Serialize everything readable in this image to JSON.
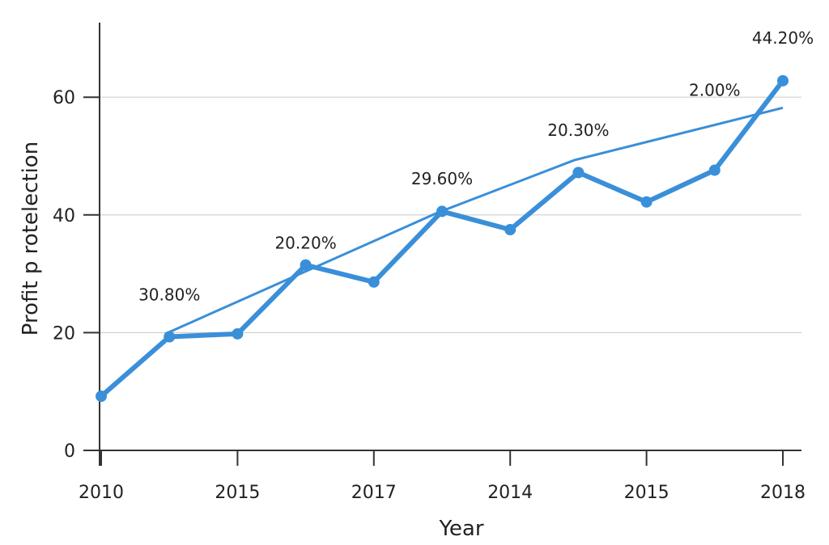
{
  "chart_data": {
    "type": "line",
    "xlabel": "Year",
    "ylabel": "Profit p rotelection",
    "ylim": [
      0,
      70
    ],
    "yticks": [
      0,
      20,
      40,
      60
    ],
    "xtick_labels": [
      "2010",
      "2015",
      "2017",
      "2014",
      "2015",
      "2018"
    ],
    "grid": true,
    "series": [
      {
        "x": [
          0,
          0.5,
          1,
          1.5,
          2,
          2.5,
          3,
          3.5,
          4,
          4.5,
          5
        ],
        "values": [
          9.2,
          19.3,
          19.8,
          31.5,
          28.6,
          40.6,
          37.5,
          47.2,
          42.2,
          47.6,
          62.8
        ],
        "color": "#3a8fd9"
      }
    ],
    "trend_line": {
      "x": [
        0.47,
        2.47,
        3.47,
        5
      ],
      "values": [
        19.8,
        40.4,
        49.3,
        58.2
      ],
      "color": "#3a8fd9"
    },
    "annotations": [
      {
        "text": "30.80%",
        "x": 0.5,
        "y": 25.5
      },
      {
        "text": "20.20%",
        "x": 1.5,
        "y": 34.3
      },
      {
        "text": "29.60%",
        "x": 2.5,
        "y": 45.2
      },
      {
        "text": "20.30%",
        "x": 3.5,
        "y": 53.4
      },
      {
        "text": "2.00%",
        "x": 4.5,
        "y": 60.2
      },
      {
        "text": "44.20%",
        "x": 5.0,
        "y": 69.1
      }
    ]
  }
}
